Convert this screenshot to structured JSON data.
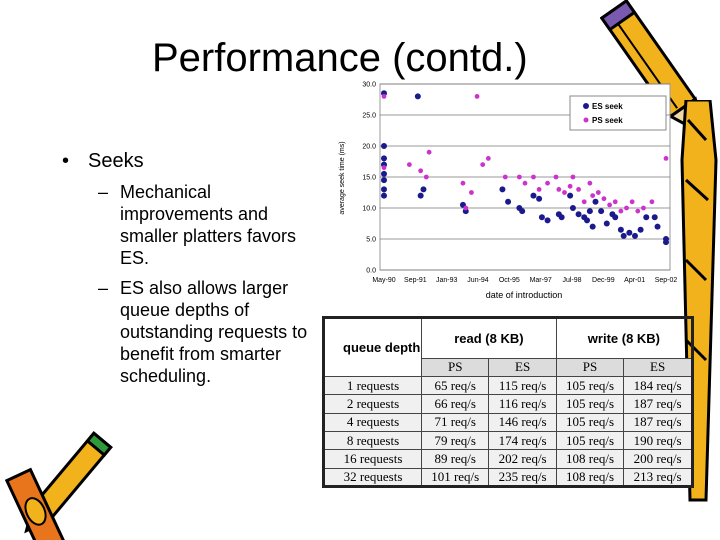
{
  "slide": {
    "title": "Performance (contd.)",
    "bullet": "Seeks",
    "subbullets": [
      "Mechanical improvements and smaller platters favors ES.",
      "ES also allows larger queue depths of outstanding requests to benefit from smarter scheduling."
    ]
  },
  "chart_data": [
    {
      "type": "scatter",
      "xlabel": "date of introduction",
      "ylabel": "average seek time (ms)",
      "ylim": [
        0,
        30
      ],
      "yticks": [
        "0.0",
        "5.0",
        "10.0",
        "15.0",
        "20.0",
        "25.0",
        "30.0"
      ],
      "xticks": [
        "May-90",
        "Sep-91",
        "Jan-93",
        "Jun-94",
        "Oct-95",
        "Mar-97",
        "Jul-98",
        "Dec-99",
        "Apr-01",
        "Sep-02"
      ],
      "grid": "horizontal",
      "legend": "top-right",
      "series": [
        {
          "name": "ES seek",
          "color": "#1a1a8c",
          "points": [
            [
              0.0,
              28.5
            ],
            [
              0.0,
              20
            ],
            [
              0.0,
              18
            ],
            [
              0.0,
              17
            ],
            [
              0.0,
              15.5
            ],
            [
              0.0,
              14.5
            ],
            [
              0.0,
              13
            ],
            [
              0.0,
              12
            ],
            [
              0.12,
              28
            ],
            [
              0.13,
              12
            ],
            [
              0.14,
              13
            ],
            [
              0.28,
              10.5
            ],
            [
              0.29,
              9.5
            ],
            [
              0.42,
              13
            ],
            [
              0.44,
              11
            ],
            [
              0.48,
              10
            ],
            [
              0.49,
              9.5
            ],
            [
              0.53,
              12
            ],
            [
              0.55,
              11.5
            ],
            [
              0.56,
              8.5
            ],
            [
              0.58,
              8
            ],
            [
              0.62,
              9
            ],
            [
              0.63,
              8.5
            ],
            [
              0.66,
              12
            ],
            [
              0.67,
              10
            ],
            [
              0.69,
              9
            ],
            [
              0.71,
              8.5
            ],
            [
              0.72,
              8
            ],
            [
              0.73,
              9.5
            ],
            [
              0.74,
              7
            ],
            [
              0.75,
              11
            ],
            [
              0.77,
              9.5
            ],
            [
              0.79,
              7.5
            ],
            [
              0.81,
              9
            ],
            [
              0.82,
              8.5
            ],
            [
              0.84,
              6.5
            ],
            [
              0.85,
              5.5
            ],
            [
              0.87,
              6
            ],
            [
              0.89,
              5.5
            ],
            [
              0.91,
              6.5
            ],
            [
              0.93,
              8.5
            ],
            [
              0.96,
              8.5
            ],
            [
              0.97,
              7
            ],
            [
              1.0,
              4.5
            ],
            [
              1.0,
              5
            ]
          ]
        },
        {
          "name": "PS seek",
          "color": "#cc33cc",
          "points": [
            [
              0.0,
              28
            ],
            [
              0.0,
              16.5
            ],
            [
              0.09,
              17
            ],
            [
              0.13,
              16
            ],
            [
              0.15,
              15
            ],
            [
              0.16,
              19
            ],
            [
              0.28,
              14
            ],
            [
              0.29,
              10
            ],
            [
              0.31,
              12.5
            ],
            [
              0.33,
              28
            ],
            [
              0.35,
              17
            ],
            [
              0.37,
              18
            ],
            [
              0.43,
              15
            ],
            [
              0.48,
              15
            ],
            [
              0.5,
              14
            ],
            [
              0.53,
              15
            ],
            [
              0.55,
              13
            ],
            [
              0.58,
              14
            ],
            [
              0.61,
              15
            ],
            [
              0.62,
              13
            ],
            [
              0.64,
              12.5
            ],
            [
              0.66,
              13.5
            ],
            [
              0.67,
              15
            ],
            [
              0.69,
              13
            ],
            [
              0.71,
              11
            ],
            [
              0.73,
              14
            ],
            [
              0.74,
              12
            ],
            [
              0.76,
              12.5
            ],
            [
              0.78,
              11.5
            ],
            [
              0.8,
              10.5
            ],
            [
              0.82,
              11
            ],
            [
              0.84,
              9.5
            ],
            [
              0.86,
              10
            ],
            [
              0.88,
              11
            ],
            [
              0.9,
              9.5
            ],
            [
              0.92,
              10
            ],
            [
              0.95,
              11
            ],
            [
              1.0,
              18
            ]
          ]
        }
      ]
    },
    {
      "type": "table",
      "columns": [
        "queue depth",
        "read (8 KB)",
        "write (8 KB)"
      ],
      "subcolumns": [
        "PS",
        "ES",
        "PS",
        "ES"
      ],
      "rows": [
        [
          "1 requests",
          "65 req/s",
          "115 req/s",
          "105 req/s",
          "184 req/s"
        ],
        [
          "2 requests",
          "66 req/s",
          "116 req/s",
          "105 req/s",
          "187 req/s"
        ],
        [
          "4 requests",
          "71 req/s",
          "146 req/s",
          "105 req/s",
          "187 req/s"
        ],
        [
          "8 requests",
          "79 req/s",
          "174 req/s",
          "105 req/s",
          "190 req/s"
        ],
        [
          "16 requests",
          "89 req/s",
          "202 req/s",
          "108 req/s",
          "200 req/s"
        ],
        [
          "32 requests",
          "101 req/s",
          "235 req/s",
          "108 req/s",
          "213 req/s"
        ]
      ]
    }
  ]
}
